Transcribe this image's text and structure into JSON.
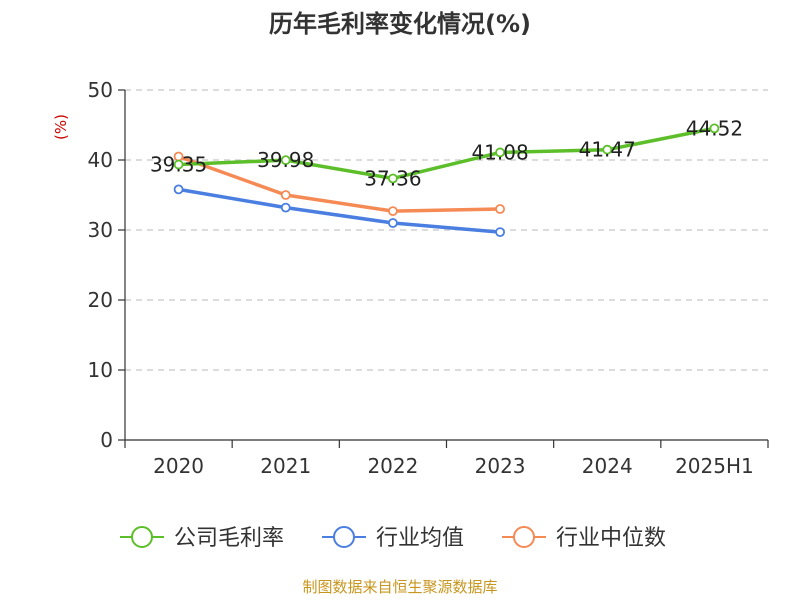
{
  "chart_data": {
    "type": "line",
    "title": "历年毛利率变化情况(%)",
    "unit_label": "(%)",
    "categories": [
      "2020",
      "2021",
      "2022",
      "2023",
      "2024",
      "2025H1"
    ],
    "ylim": [
      0,
      50
    ],
    "yticks": [
      0,
      10,
      20,
      30,
      40,
      50
    ],
    "grid": true,
    "legend_position": "bottom",
    "series": [
      {
        "name": "公司毛利率",
        "color": "#5cbf2a",
        "values": [
          39.35,
          39.98,
          37.36,
          41.08,
          41.47,
          44.52
        ],
        "labels": [
          "39.35",
          "39.98",
          "37.36",
          "41.08",
          "41.47",
          "44.52"
        ]
      },
      {
        "name": "行业均值",
        "color": "#4a7ee0",
        "values": [
          35.8,
          33.2,
          31.0,
          29.7,
          null,
          null
        ]
      },
      {
        "name": "行业中位数",
        "color": "#f58a55",
        "values": [
          40.5,
          35.0,
          32.7,
          33.0,
          null,
          null
        ]
      }
    ],
    "source": "制图数据来自恒生聚源数据库"
  }
}
